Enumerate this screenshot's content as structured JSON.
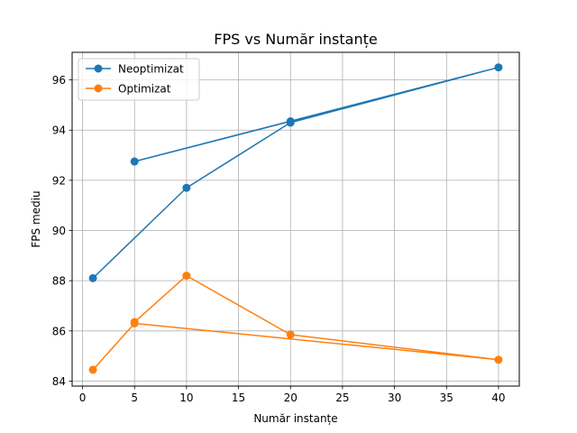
{
  "chart_data": {
    "type": "line",
    "title": "FPS vs Număr instanțe",
    "xlabel": "Număr instanțe",
    "ylabel": "FPS mediu",
    "xlim": [
      -1,
      42
    ],
    "ylim": [
      83.8,
      97.1
    ],
    "xticks": [
      0,
      5,
      10,
      15,
      20,
      25,
      30,
      35,
      40
    ],
    "yticks": [
      84,
      86,
      88,
      90,
      92,
      94,
      96
    ],
    "grid": true,
    "legend": "top-left",
    "series": [
      {
        "name": "Neoptimizat",
        "color": "#1f77b4",
        "marker": "circle",
        "x": [
          1,
          10,
          20,
          40,
          5,
          20
        ],
        "y": [
          88.1,
          91.7,
          94.3,
          96.5,
          92.75,
          94.35
        ]
      },
      {
        "name": "Optimizat",
        "color": "#ff7f0e",
        "marker": "circle",
        "x": [
          1,
          5,
          40,
          20,
          10,
          5
        ],
        "y": [
          84.45,
          86.3,
          84.85,
          85.85,
          88.2,
          86.35
        ]
      }
    ]
  }
}
